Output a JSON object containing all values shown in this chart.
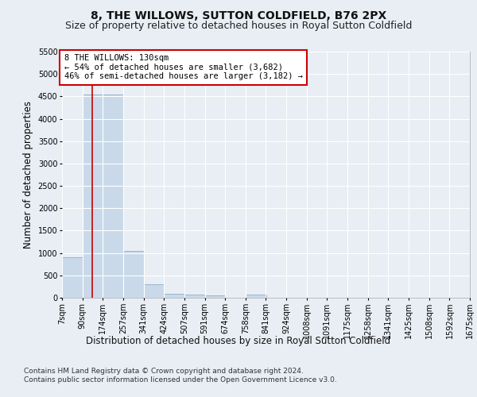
{
  "title": "8, THE WILLOWS, SUTTON COLDFIELD, B76 2PX",
  "subtitle": "Size of property relative to detached houses in Royal Sutton Coldfield",
  "xlabel": "Distribution of detached houses by size in Royal Sutton Coldfield",
  "ylabel": "Number of detached properties",
  "footer1": "Contains HM Land Registry data © Crown copyright and database right 2024.",
  "footer2": "Contains public sector information licensed under the Open Government Licence v3.0.",
  "annotation_line1": "8 THE WILLOWS: 130sqm",
  "annotation_line2": "← 54% of detached houses are smaller (3,682)",
  "annotation_line3": "46% of semi-detached houses are larger (3,182) →",
  "bar_color": "#c9d9e9",
  "bar_edgecolor": "#9ab5cc",
  "vline_color": "#cc0000",
  "vline_x_bin": 1,
  "annotation_box_edgecolor": "#cc0000",
  "annotation_box_facecolor": "#ffffff",
  "ylim": [
    0,
    5500
  ],
  "yticks": [
    0,
    500,
    1000,
    1500,
    2000,
    2500,
    3000,
    3500,
    4000,
    4500,
    5000,
    5500
  ],
  "bin_edges": [
    7,
    90,
    174,
    257,
    341,
    424,
    507,
    591,
    674,
    758,
    841,
    924,
    1008,
    1091,
    1175,
    1258,
    1341,
    1425,
    1508,
    1592,
    1675
  ],
  "bin_values": [
    900,
    4550,
    4550,
    1050,
    300,
    80,
    70,
    60,
    0,
    70,
    0,
    0,
    0,
    0,
    0,
    0,
    0,
    0,
    0,
    0
  ],
  "background_color": "#e8eef4",
  "plot_bg_color": "#e8eef4",
  "grid_color": "#ffffff",
  "title_fontsize": 10,
  "subtitle_fontsize": 9,
  "axis_label_fontsize": 8.5,
  "tick_fontsize": 7,
  "annotation_fontsize": 7.5,
  "footer_fontsize": 6.5
}
